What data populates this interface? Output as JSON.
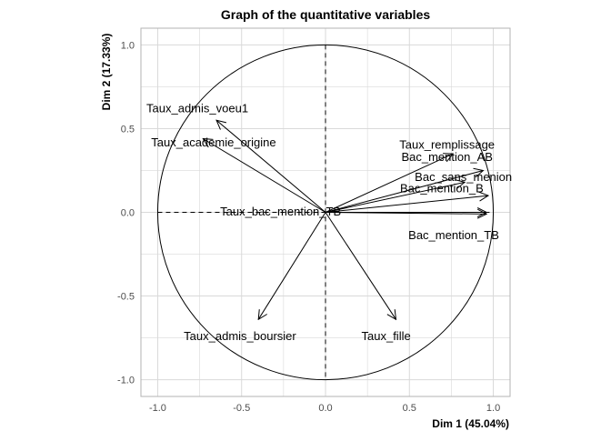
{
  "chart_data": {
    "type": "scatter",
    "subtype": "pca-correlation-circle",
    "title": "Graph of the quantitative variables",
    "xlabel": "Dim 1 (45.04%)",
    "ylabel": "Dim 2 (17.33%)",
    "xlim": [
      -1.1,
      1.1
    ],
    "ylim": [
      -1.1,
      1.1
    ],
    "x_ticks": [
      {
        "value": -1.0,
        "label": "-1.0"
      },
      {
        "value": -0.5,
        "label": "-0.5"
      },
      {
        "value": 0.0,
        "label": "0.0"
      },
      {
        "value": 0.5,
        "label": "0.5"
      },
      {
        "value": 1.0,
        "label": "1.0"
      }
    ],
    "y_ticks": [
      {
        "value": -1.0,
        "label": "-1.0"
      },
      {
        "value": -0.5,
        "label": "-0.5"
      },
      {
        "value": 0.0,
        "label": "0.0"
      },
      {
        "value": 0.5,
        "label": "0.5"
      },
      {
        "value": 1.0,
        "label": "1.0"
      }
    ],
    "grid": true,
    "unit_circle": true,
    "variables": [
      {
        "name": "Taux_admis_voeu1",
        "x": -0.65,
        "y": 0.55
      },
      {
        "name": "Taux_academie_origine",
        "x": -0.73,
        "y": 0.44
      },
      {
        "name": "Taux_remplissage",
        "x": 0.76,
        "y": 0.35
      },
      {
        "name": "Bac_mention_AB",
        "x": 0.94,
        "y": 0.25
      },
      {
        "name": "Bac_sans_menion",
        "x": 0.83,
        "y": 0.18
      },
      {
        "name": "Bac_mention_B",
        "x": 0.97,
        "y": 0.1
      },
      {
        "name": "Taux_bac_mention_TB",
        "x": 0.96,
        "y": 0.0
      },
      {
        "name": "Bac_mention_TB",
        "x": 0.96,
        "y": -0.01
      },
      {
        "name": "Taux_admis_boursier",
        "x": -0.4,
        "y": -0.64
      },
      {
        "name": "Taux_fille",
        "x": 0.42,
        "y": -0.64
      }
    ],
    "colors": {
      "panel_border": "#b3b3b3",
      "grid": "#d9d9d9",
      "arrow": "#000000",
      "text": "#000000",
      "tick_text": "#4d4d4d"
    }
  }
}
